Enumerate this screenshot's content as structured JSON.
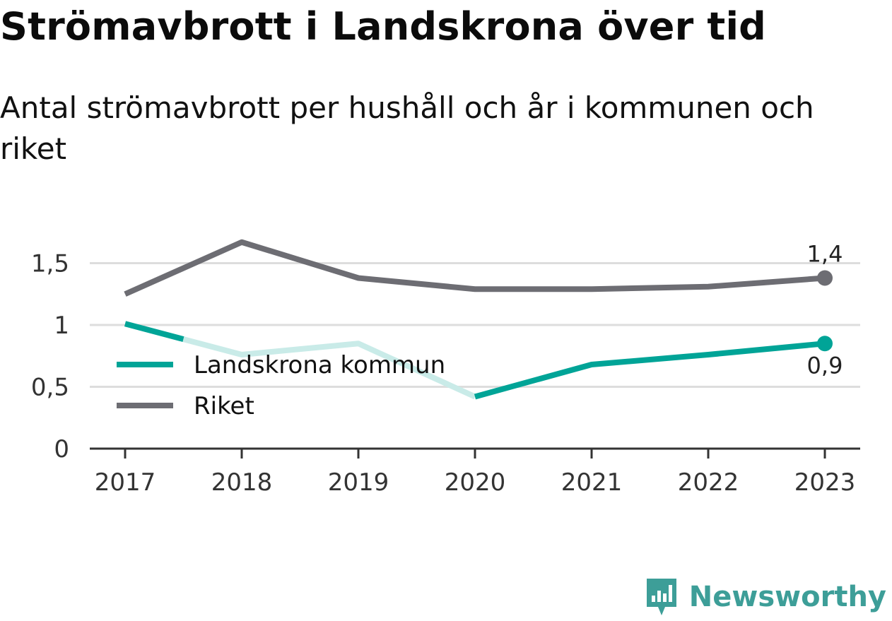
{
  "title": "Strömavbrott i Landskrona över tid",
  "subtitle": "Antal strömavbrott per hushåll och år i kommunen och riket",
  "brand": {
    "name": "Newsworthy",
    "icon": "chart-logo-icon"
  },
  "colors": {
    "landskrona": "#00a497",
    "landskrona_faded": "#c9ebe8",
    "riket": "#6d6d73",
    "grid": "#dddddd",
    "axis": "#333333"
  },
  "chart_data": {
    "type": "line",
    "x": [
      "2017",
      "2018",
      "2019",
      "2020",
      "2021",
      "2022",
      "2023"
    ],
    "y_ticks": [
      {
        "value": 0,
        "label": "0"
      },
      {
        "value": 0.5,
        "label": "0,5"
      },
      {
        "value": 1,
        "label": "1"
      },
      {
        "value": 1.5,
        "label": "1,5"
      }
    ],
    "ylim": [
      0,
      1.7
    ],
    "grid": true,
    "legend_position": "center-left",
    "series": [
      {
        "name": "Landskrona kommun",
        "key": "landskrona",
        "values": [
          1.01,
          0.76,
          0.85,
          0.42,
          0.68,
          0.76,
          0.85
        ],
        "end_label": "0,9"
      },
      {
        "name": "Riket",
        "key": "riket",
        "values": [
          1.25,
          1.67,
          1.38,
          1.29,
          1.29,
          1.31,
          1.38
        ],
        "end_label": "1,4"
      }
    ]
  }
}
